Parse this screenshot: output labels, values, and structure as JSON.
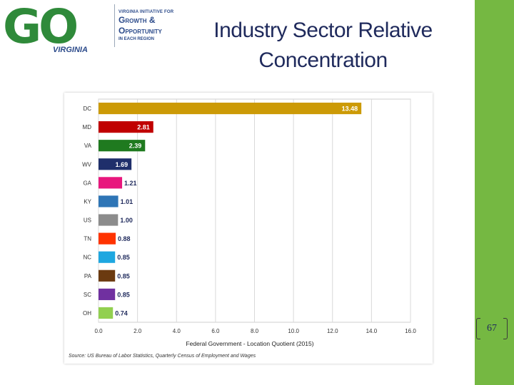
{
  "logo": {
    "mark": "GO",
    "state": "VIRGINIA",
    "line1": "VIRGINIA INITIATIVE FOR",
    "line2": "Growth &",
    "line3": "Opportunity",
    "line4": "IN EACH REGION",
    "colors": {
      "green": "#2f8a3a",
      "blue": "#2b4a8a"
    }
  },
  "slide": {
    "title": "Industry Sector Relative Concentration",
    "page_number": "67",
    "accent_color": "#75b842"
  },
  "chart_data": {
    "type": "bar",
    "orientation": "horizontal",
    "title": "",
    "xlabel": "Federal Government - Location Quotient (2015)",
    "ylabel": "",
    "xlim": [
      0,
      16
    ],
    "xticks": [
      "0.0",
      "2.0",
      "4.0",
      "6.0",
      "8.0",
      "10.0",
      "12.0",
      "14.0",
      "16.0"
    ],
    "categories": [
      "DC",
      "MD",
      "VA",
      "WV",
      "GA",
      "KY",
      "US",
      "TN",
      "NC",
      "PA",
      "SC",
      "OH"
    ],
    "values": [
      13.48,
      2.81,
      2.39,
      1.69,
      1.21,
      1.01,
      1.0,
      0.88,
      0.85,
      0.85,
      0.85,
      0.74
    ],
    "labels": [
      "13.48",
      "2.81",
      "2.39",
      "1.69",
      "1.21",
      "1.01",
      "1.00",
      "0.88",
      "0.85",
      "0.85",
      "0.85",
      "0.74"
    ],
    "colors": [
      "#cc9a06",
      "#c00000",
      "#1f7a1f",
      "#1f2f6b",
      "#e8177d",
      "#2e75b6",
      "#8c8c8c",
      "#ff3300",
      "#1ea7e0",
      "#6b3a10",
      "#7030a0",
      "#92d050"
    ],
    "grid": true,
    "source": "Source: US Bureau of Labor Statistics, Quarterly Census of Employment and Wages"
  }
}
